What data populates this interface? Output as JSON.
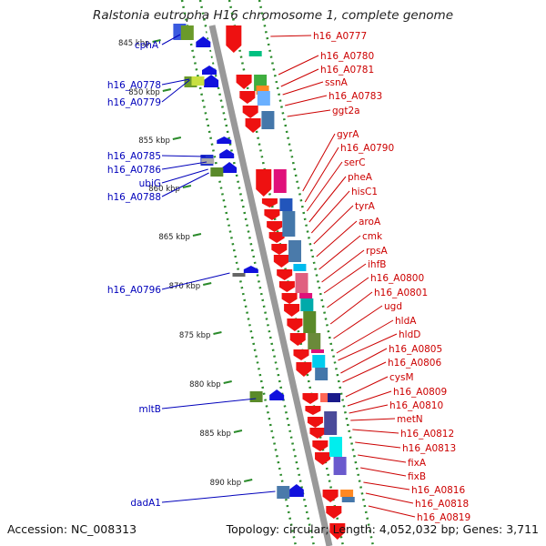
{
  "title": "Ralstonia eutropha H16 chromosome 1, complete genome",
  "footer": {
    "accession": "Accession: NC_008313",
    "stats": "Topology: circular; Length: 4,052,032 bp; Genes: 3,711"
  },
  "colors": {
    "gene_right": "#ee1111",
    "gene_left": "#1111dd",
    "label_right": "#cc0000",
    "label_left": "#0000bb",
    "backbone": "#999999",
    "dots": "#2a8a2a"
  },
  "ticks": [
    "845 kbp",
    "850 kbp",
    "855 kbp",
    "860 kbp",
    "865 kbp",
    "870 kbp",
    "875 kbp",
    "880 kbp",
    "885 kbp",
    "890 kbp"
  ],
  "left_labels": [
    "cphA'",
    "h16_A0778",
    "h16_A0779",
    "h16_A0785",
    "h16_A0786",
    "ubiG",
    "h16_A0788",
    "h16_A0796",
    "mltB",
    "dadA1"
  ],
  "right_labels": [
    "h16_A0777",
    "h16_A0780",
    "h16_A0781",
    "ssnA",
    "h16_A0783",
    "ggt2a",
    "gyrA",
    "h16_A0790",
    "serC",
    "pheA",
    "hisC1",
    "tyrA",
    "aroA",
    "cmk",
    "rpsA",
    "ihfB",
    "h16_A0800",
    "h16_A0801",
    "ugd",
    "hldA",
    "hldD",
    "h16_A0805",
    "h16_A0806",
    "cysM",
    "h16_A0809",
    "h16_A0810",
    "metN",
    "h16_A0812",
    "h16_A0813",
    "fixA",
    "fixB",
    "h16_A0816",
    "h16_A0818",
    "h16_A0819"
  ]
}
